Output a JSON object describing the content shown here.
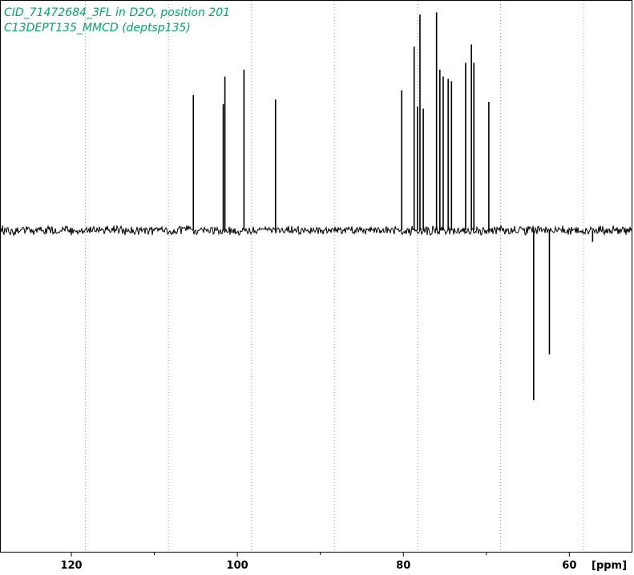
{
  "title_lines": [
    "CID_71472684_3FL in D2O, position 201",
    "C13DEPT135_MMCD (deptsp135)"
  ],
  "colors": {
    "title": "#00a86b",
    "trace": "#000000",
    "grid": "#999999",
    "frame": "#000000"
  },
  "chart_data": {
    "type": "line",
    "title": "CID_71472684_3FL in D2O, position 201",
    "subtitle": "C13DEPT135_MMCD (deptsp135)",
    "xlabel": "[ppm]",
    "ylabel": "",
    "x_reversed": true,
    "xlim": [
      128.5,
      52.5
    ],
    "ylim": [
      -1.4,
      1.0
    ],
    "grid_x": true,
    "grid_y": false,
    "major_ticks": [
      120,
      100,
      80,
      60
    ],
    "minor_ticks": [
      130,
      110,
      90,
      70,
      50
    ],
    "grid_at": [
      118.3,
      108.3,
      98.3,
      88.3,
      78.3,
      68.3,
      58.3
    ],
    "baseline": 0,
    "peaks": [
      {
        "x": 105.3,
        "y": 0.59
      },
      {
        "x": 101.7,
        "y": 0.55
      },
      {
        "x": 101.5,
        "y": 0.67
      },
      {
        "x": 99.2,
        "y": 0.7
      },
      {
        "x": 95.4,
        "y": 0.57
      },
      {
        "x": 80.2,
        "y": 0.61
      },
      {
        "x": 78.7,
        "y": 0.8
      },
      {
        "x": 78.3,
        "y": 0.54
      },
      {
        "x": 78.0,
        "y": 0.94
      },
      {
        "x": 77.6,
        "y": 0.53
      },
      {
        "x": 76.0,
        "y": 0.95
      },
      {
        "x": 75.6,
        "y": 0.7
      },
      {
        "x": 75.2,
        "y": 0.67
      },
      {
        "x": 74.6,
        "y": 0.66
      },
      {
        "x": 74.2,
        "y": 0.65
      },
      {
        "x": 72.5,
        "y": 0.73
      },
      {
        "x": 71.8,
        "y": 0.81
      },
      {
        "x": 71.5,
        "y": 0.73
      },
      {
        "x": 69.7,
        "y": 0.56
      },
      {
        "x": 64.3,
        "y": -0.74
      },
      {
        "x": 62.4,
        "y": -0.54
      },
      {
        "x": 57.2,
        "y": -0.05
      }
    ]
  }
}
